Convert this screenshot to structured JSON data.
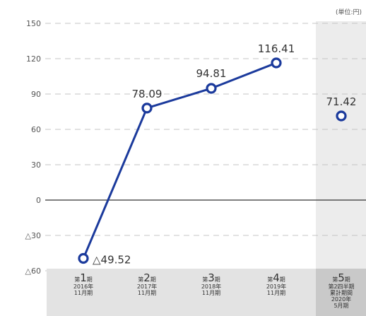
{
  "unit_label": "(単位:円)",
  "chart_data": {
    "type": "line",
    "ylim": [
      -60,
      150
    ],
    "yticks": [
      150,
      120,
      90,
      60,
      30,
      0,
      -30,
      -60
    ],
    "ytick_labels": [
      "150",
      "120",
      "90",
      "60",
      "30",
      "0",
      "△30",
      "△60"
    ],
    "categories": [
      {
        "prefix": "第",
        "num": "1",
        "suffix": "期",
        "lines": [
          "2016年",
          "11月期"
        ]
      },
      {
        "prefix": "第",
        "num": "2",
        "suffix": "期",
        "lines": [
          "2017年",
          "11月期"
        ]
      },
      {
        "prefix": "第",
        "num": "3",
        "suffix": "期",
        "lines": [
          "2018年",
          "11月期"
        ]
      },
      {
        "prefix": "第",
        "num": "4",
        "suffix": "期",
        "lines": [
          "2019年",
          "11月期"
        ]
      },
      {
        "prefix": "第",
        "num": "5",
        "suffix": "期",
        "lines": [
          "第2四半期",
          "累計期間",
          "2020年",
          "5月期"
        ]
      }
    ],
    "values": [
      -49.52,
      78.09,
      94.81,
      116.41,
      71.42
    ],
    "value_labels": [
      "△49.52",
      "78.09",
      "94.81",
      "116.41",
      "71.42"
    ],
    "connected_points": 4,
    "highlight_last_category": true,
    "colors": {
      "line": "#1b3a9c",
      "marker_fill": "#ffffff",
      "grid": "#c4c4c4",
      "zero_line": "#333333",
      "category_band": "#e3e3e3",
      "highlight_band": "#ececec",
      "highlight_category": "#c9c9c9"
    }
  }
}
